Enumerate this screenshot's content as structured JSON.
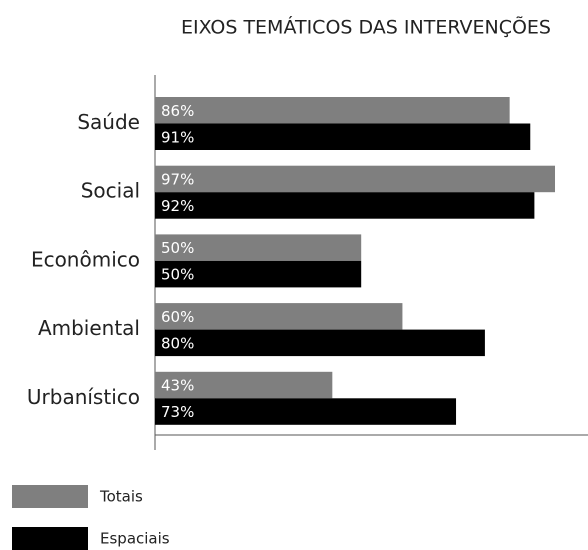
{
  "chart_data": {
    "type": "bar",
    "orientation": "horizontal",
    "title": "EIXOS TEMÁTICOS DAS INTERVENÇÕES",
    "categories": [
      "Saúde",
      "Social",
      "Econômico",
      "Ambiental",
      "Urbanístico"
    ],
    "series": [
      {
        "name": "Totais",
        "color": "#7f7f7f",
        "values": [
          86,
          97,
          50,
          60,
          43
        ],
        "value_labels": [
          "86%",
          "97%",
          "50%",
          "60%",
          "43%"
        ]
      },
      {
        "name": "Espaciais",
        "color": "#000000",
        "values": [
          91,
          92,
          50,
          80,
          73
        ],
        "value_labels": [
          "91%",
          "92%",
          "50%",
          "80%",
          "73%"
        ]
      }
    ],
    "xlim": [
      0,
      105
    ],
    "legend": "bottom-left"
  }
}
